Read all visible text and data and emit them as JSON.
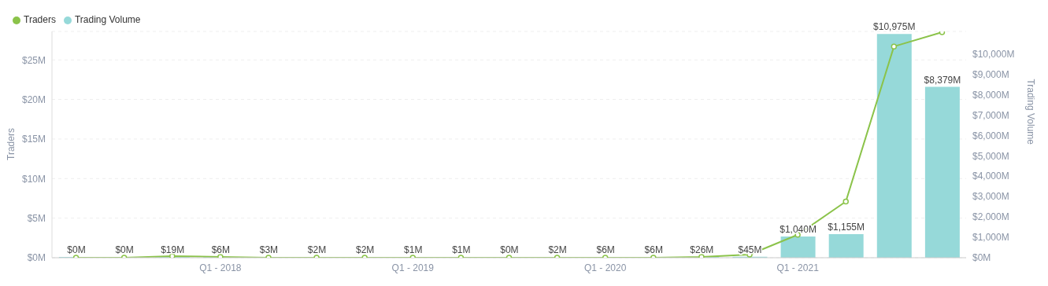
{
  "chart_data": {
    "type": "bar",
    "categories": [
      null,
      null,
      null,
      "Q1 - 2018",
      null,
      null,
      null,
      "Q1 - 2019",
      null,
      null,
      null,
      "Q1 - 2020",
      null,
      null,
      null,
      "Q1 - 2021",
      null,
      null,
      null
    ],
    "ylabel": "Traders",
    "y2label": "Trading Volume",
    "series": [
      {
        "name": "Traders",
        "type": "line",
        "color": "#8bc34a",
        "values": [
          0,
          0,
          0.2,
          0.1,
          0,
          0,
          0,
          0,
          0,
          0,
          0,
          0,
          0,
          0.1,
          0.4,
          2.9,
          7.1,
          26.7,
          28.5
        ]
      },
      {
        "name": "Trading Volume",
        "axis": "y2",
        "color": "#96d9d9",
        "values": [
          0,
          0,
          19,
          6,
          3,
          2,
          2,
          1,
          1,
          0,
          2,
          6,
          6,
          26,
          45,
          1040,
          1155,
          10975,
          8379
        ],
        "value_labels": [
          "$0M",
          "$0M",
          "$19M",
          "$6M",
          "$3M",
          "$2M",
          "$2M",
          "$1M",
          "$1M",
          "$0M",
          "$2M",
          "$6M",
          "$6M",
          "$26M",
          "$45M",
          "$1,040M",
          "$1,155M",
          "$10,975M",
          "$8,379M"
        ]
      }
    ],
    "ylim": [
      0,
      28.6
    ],
    "yticks": [
      {
        "value": 0,
        "label": "$0M"
      },
      {
        "value": 5,
        "label": "$5M"
      },
      {
        "value": 10,
        "label": "$10M"
      },
      {
        "value": 15,
        "label": "$15M"
      },
      {
        "value": 20,
        "label": "$20M"
      },
      {
        "value": 25,
        "label": "$25M"
      }
    ],
    "y2lim": [
      0,
      11100
    ],
    "y2ticks": [
      {
        "value": 0,
        "label": "$0M"
      },
      {
        "value": 1000,
        "label": "$1,000M"
      },
      {
        "value": 2000,
        "label": "$2,000M"
      },
      {
        "value": 3000,
        "label": "$3,000M"
      },
      {
        "value": 4000,
        "label": "$4,000M"
      },
      {
        "value": 5000,
        "label": "$5,000M"
      },
      {
        "value": 6000,
        "label": "$6,000M"
      },
      {
        "value": 7000,
        "label": "$7,000M"
      },
      {
        "value": 8000,
        "label": "$8,000M"
      },
      {
        "value": 9000,
        "label": "$9,000M"
      },
      {
        "value": 10000,
        "label": "$10,000M"
      }
    ],
    "grid": "y",
    "legend": "top left",
    "marker": "circle",
    "line_style": "solid"
  }
}
